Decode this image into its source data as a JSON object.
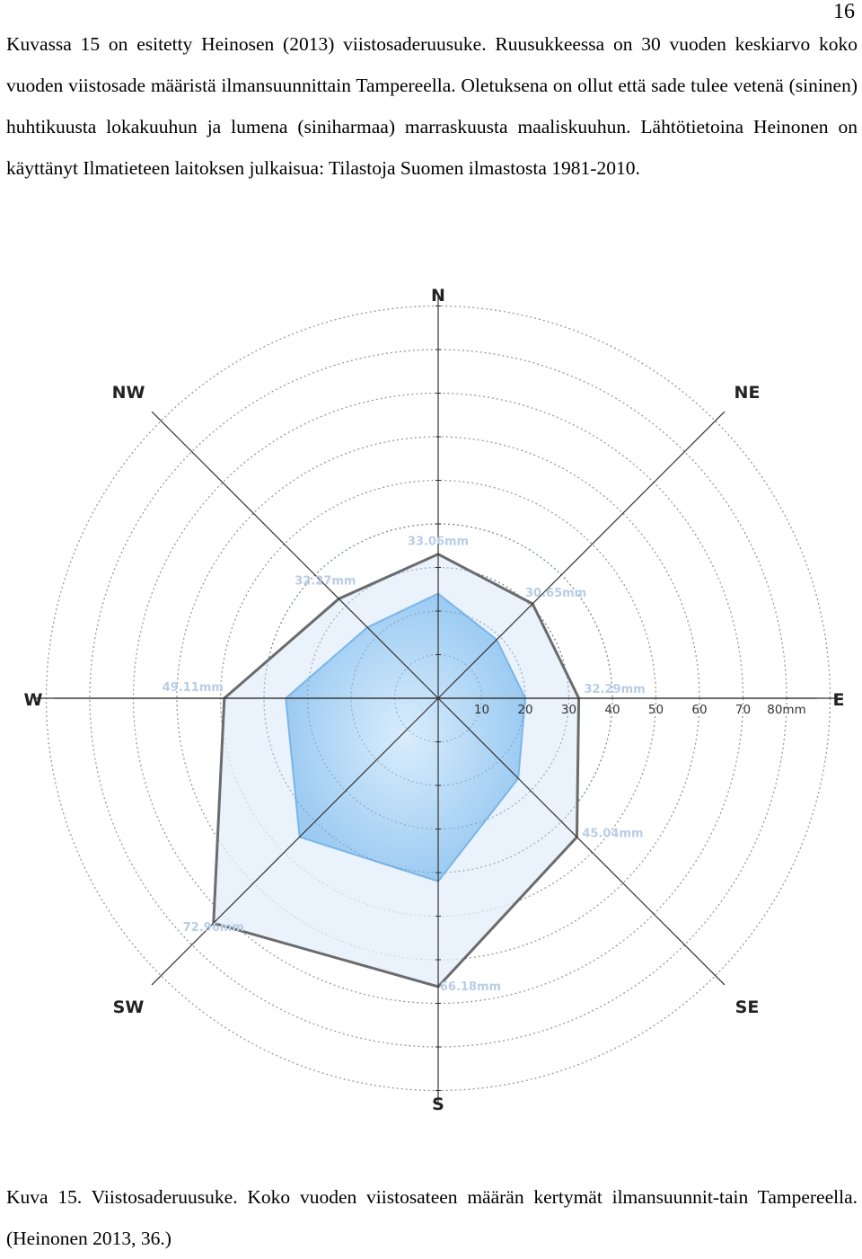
{
  "page_number": "16",
  "paragraph": "Kuvassa 15 on esitetty Heinosen (2013) viistosaderuusuke. Ruusukkeessa on 30 vuoden keskiarvo koko vuoden viistosade määristä ilmansuunnittain Tampereella. Oletuksena on ollut että sade tulee vetenä (sininen) huhtikuusta lokakuuhun ja lumena (siniharmaa) marraskuusta maaliskuuhun. Lähtötietoina Heinonen on käyttänyt Ilmatieteen laitoksen julkaisua: Tilastoja Suomen ilmastosta 1981-2010.",
  "caption": "Kuva 15. Viistosaderuusuke. Koko vuoden viistosateen määrän kertymät ilmansuunnit-tain Tampereella. (Heinonen 2013, 36.)",
  "chart_data": {
    "type": "radar",
    "directions": [
      "N",
      "NE",
      "E",
      "SE",
      "S",
      "SW",
      "W",
      "NW"
    ],
    "radial_ticks": [
      "10",
      "20",
      "30",
      "40",
      "50",
      "60",
      "70",
      "80mm"
    ],
    "r_max": 80,
    "series": [
      {
        "values": [
          33.06,
          30.65,
          32.29,
          45.04,
          66.18,
          72.96,
          49.11,
          32.27
        ],
        "labels": [
          "33.06mm",
          "30.65mm",
          "32.29mm",
          "45.04mm",
          "66.18mm",
          "72.96mm",
          "49.11mm",
          "32.27mm"
        ],
        "color": "#6b6b6b",
        "fill": "#e3eefb"
      },
      {
        "values": [
          24,
          19,
          20,
          26,
          42,
          45,
          35,
          23
        ],
        "color": "#79b6e8",
        "fill": "#a8d1f5"
      }
    ]
  }
}
